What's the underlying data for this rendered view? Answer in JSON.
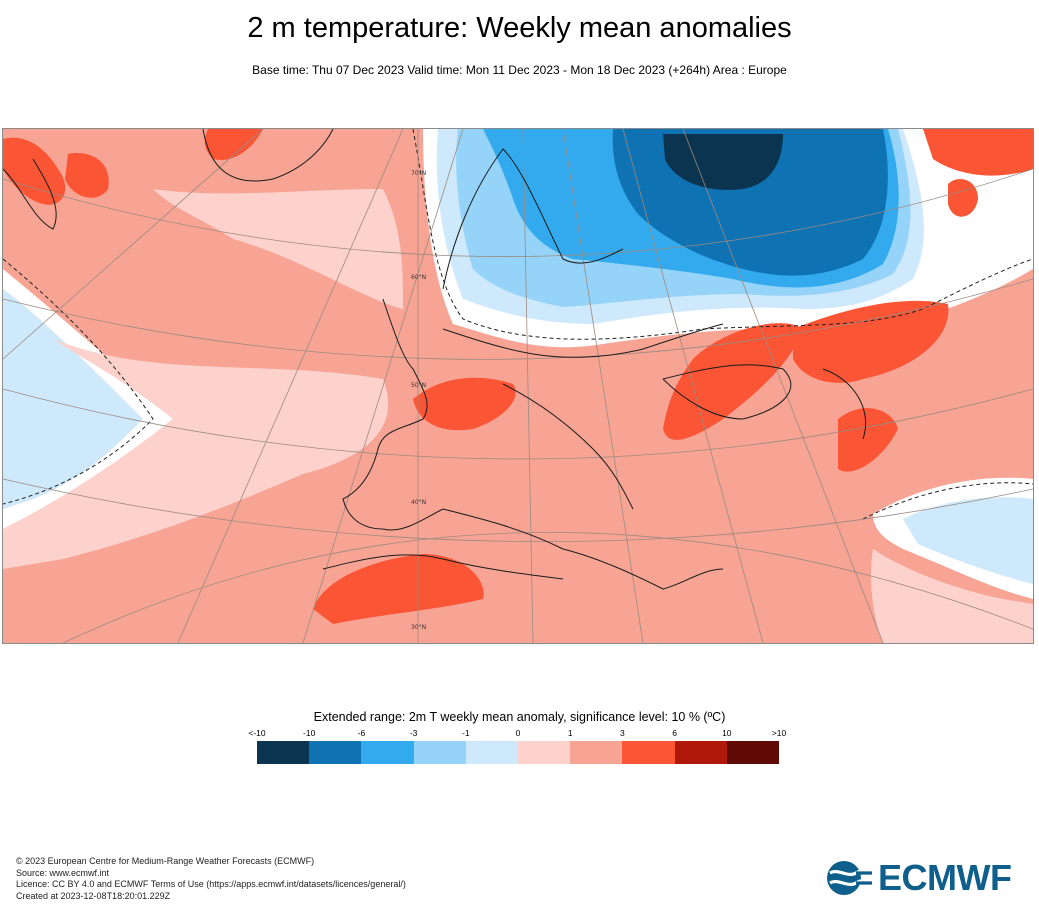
{
  "header": {
    "title": "2 m temperature: Weekly mean anomalies",
    "subtitle": "Base time: Thu 07 Dec 2023 Valid time: Mon 11 Dec 2023 - Mon 18 Dec 2023 (+264h) Area : Europe"
  },
  "map": {
    "latitude_labels": [
      "70°N",
      "60°N",
      "50°N",
      "40°N",
      "30°N"
    ]
  },
  "legend": {
    "title": "Extended range: 2m T weekly mean anomaly, significance level: 10 % (ºC)",
    "ticks": [
      "<-10",
      "-10",
      "-6",
      "-3",
      "-1",
      "0",
      "1",
      "3",
      "6",
      "10",
      ">10"
    ],
    "colors": [
      "#0b3450",
      "#0f72b3",
      "#33aaee",
      "#95d4f8",
      "#cde9fb",
      "#fdd2cc",
      "#f7a494",
      "#fa5535",
      "#b0180a",
      "#600a06"
    ]
  },
  "footer": {
    "line1": "© 2023 European Centre for Medium-Range Weather Forecasts (ECMWF)",
    "line2": "Source: www.ecmwf.int",
    "line3": "Licence: CC BY 4.0 and ECMWF Terms of Use (https://apps.ecmwf.int/datasets/licences/general/)",
    "line4": "Created at 2023-12-08T18:20:01.229Z"
  },
  "logo": {
    "text": "ECMWF"
  }
}
